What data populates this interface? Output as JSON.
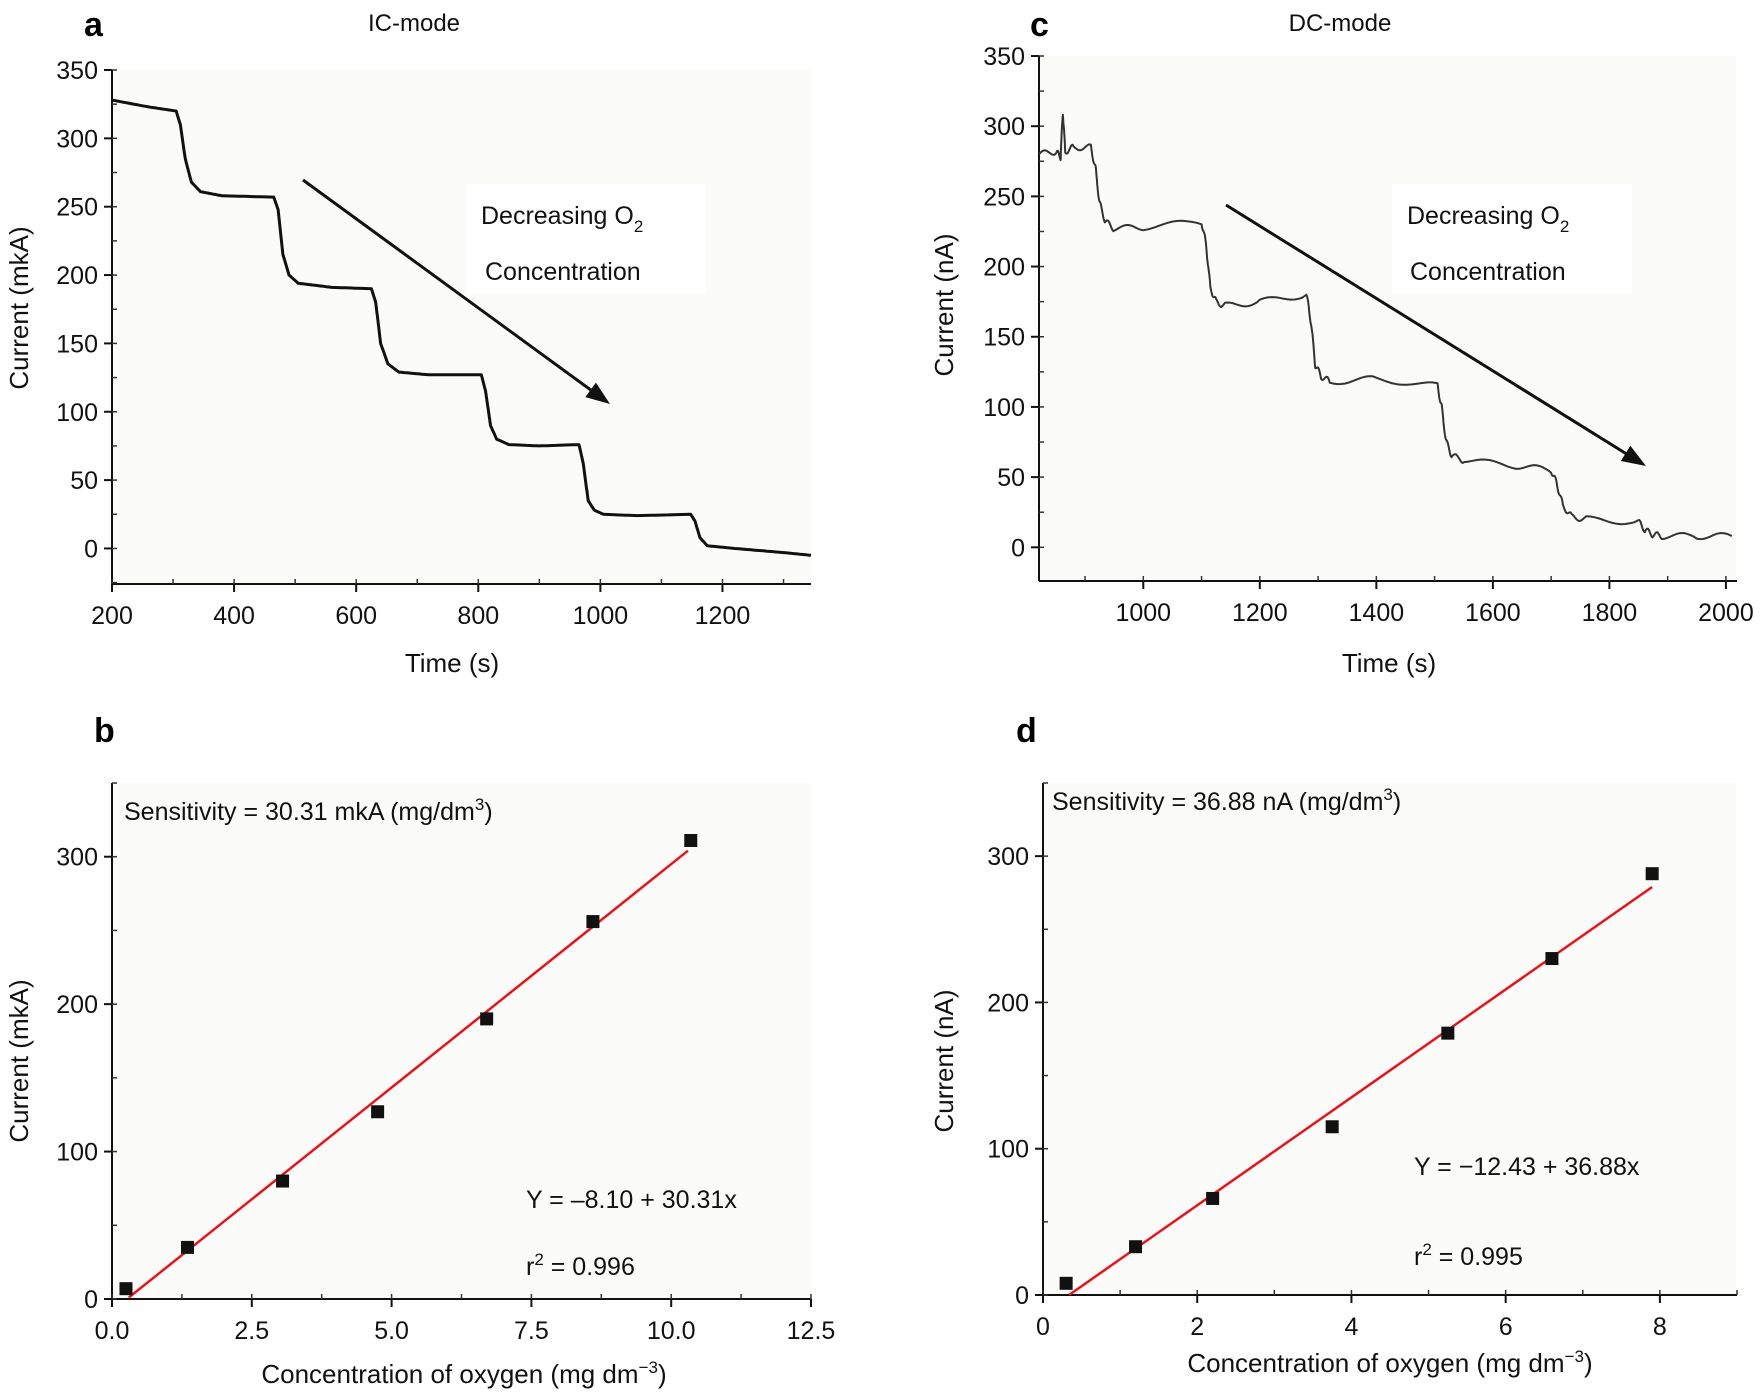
{
  "chart_data": [
    {
      "panel": "a",
      "title": "IC-mode",
      "type": "line",
      "xlabel": "Time (s)",
      "ylabel": "Current (mkA)",
      "xlim": [
        200,
        1345
      ],
      "ylim": [
        -26,
        350
      ],
      "xticks": [
        200,
        400,
        600,
        800,
        1000,
        1200
      ],
      "yticks": [
        0,
        50,
        100,
        150,
        200,
        250,
        300,
        350
      ],
      "annotation": [
        "Decreasing O",
        "2",
        "Concentration"
      ],
      "series": [
        {
          "color": "#111111",
          "x": [
            200,
            260,
            305,
            312,
            320,
            330,
            345,
            380,
            465,
            472,
            480,
            490,
            505,
            560,
            625,
            632,
            640,
            652,
            670,
            720,
            805,
            812,
            820,
            830,
            850,
            900,
            965,
            972,
            980,
            990,
            1005,
            1060,
            1148,
            1155,
            1163,
            1175,
            1220,
            1300,
            1345
          ],
          "y": [
            328,
            323,
            320,
            310,
            285,
            268,
            261,
            258,
            257,
            248,
            215,
            200,
            194,
            191,
            190,
            180,
            150,
            135,
            129,
            127,
            127,
            115,
            90,
            80,
            76,
            75,
            76,
            62,
            35,
            28,
            25,
            24,
            25,
            20,
            8,
            2,
            0,
            -3,
            -5
          ]
        }
      ]
    },
    {
      "panel": "c",
      "title": "DC-mode",
      "type": "line",
      "xlabel": "Time (s)",
      "ylabel": "Current (nA)",
      "xlim": [
        821,
        2019
      ],
      "ylim": [
        -24,
        350
      ],
      "xticks": [
        1000,
        1200,
        1400,
        1600,
        1800,
        2000
      ],
      "yticks": [
        0,
        50,
        100,
        150,
        200,
        250,
        300,
        350
      ],
      "annotation": [
        "Decreasing O",
        "2",
        "Concentration"
      ],
      "series": [
        {
          "color": "#333333",
          "noisy": true,
          "x": [
            821,
            850,
            858,
            862,
            866,
            880,
            910,
            918,
            925,
            935,
            950,
            1000,
            1100,
            1108,
            1115,
            1125,
            1140,
            1200,
            1280,
            1288,
            1295,
            1305,
            1320,
            1400,
            1505,
            1512,
            1520,
            1530,
            1550,
            1640,
            1700,
            1710,
            1720,
            1735,
            1760,
            1850,
            1862,
            1875,
            1890,
            1950,
            2010
          ],
          "y": [
            280,
            282,
            278,
            310,
            282,
            285,
            285,
            270,
            245,
            232,
            227,
            228,
            232,
            215,
            185,
            175,
            172,
            175,
            180,
            160,
            130,
            122,
            118,
            120,
            115,
            100,
            75,
            65,
            62,
            58,
            55,
            45,
            30,
            22,
            20,
            18,
            12,
            9,
            8,
            8,
            8
          ]
        }
      ]
    },
    {
      "panel": "b",
      "type": "scatter",
      "xlabel": "Concentration of oxygen (mg dm",
      "xlabel_sup": "−3",
      "xlabel_end": ")",
      "ylabel": "Current (mkA)",
      "xlim": [
        0,
        12.5
      ],
      "ylim": [
        0,
        350
      ],
      "xticks": [
        0,
        2.5,
        5,
        7.5,
        10,
        12.5
      ],
      "xtick_labels": [
        "0.0",
        "2.5",
        "5.0",
        "7.5",
        "10.0",
        "12.5"
      ],
      "yticks": [
        0,
        100,
        200,
        300
      ],
      "sensitivity": [
        "Sensitivity = 30.31 mkA (mg/dm",
        "3",
        ")"
      ],
      "equation": "Y = –8.10 + 30.31x",
      "r2": [
        "r",
        "2",
        " = 0.996"
      ],
      "fit": {
        "intercept": -8.1,
        "slope": 30.31,
        "x_range": [
          0.3,
          10.3
        ],
        "color": "#e8141c"
      },
      "points": {
        "x": [
          0.25,
          1.35,
          3.05,
          4.75,
          6.7,
          8.6,
          10.35
        ],
        "y": [
          7,
          35,
          80,
          127,
          190,
          256,
          311
        ],
        "color": "#111111"
      }
    },
    {
      "panel": "d",
      "type": "scatter",
      "xlabel": "Concentration of oxygen (mg dm",
      "xlabel_sup": "−3",
      "xlabel_end": ")",
      "ylabel": "Current (nA)",
      "xlim": [
        0,
        9
      ],
      "ylim": [
        0,
        350
      ],
      "xticks": [
        0,
        2,
        4,
        6,
        8
      ],
      "xtick_labels": [
        "0",
        "2",
        "4",
        "6",
        "8"
      ],
      "yticks": [
        0,
        100,
        200,
        300
      ],
      "sensitivity": [
        "Sensitivity = 36.88 nA (mg/dm",
        "3",
        ")"
      ],
      "equation": "Y = −12.43 + 36.88x",
      "r2": [
        "r",
        "2",
        " = 0.995"
      ],
      "fit": {
        "intercept": -12.43,
        "slope": 36.88,
        "x_range": [
          0.34,
          7.9
        ],
        "color": "#e8141c"
      },
      "points": {
        "x": [
          0.3,
          1.2,
          2.2,
          3.75,
          5.25,
          6.6,
          7.9
        ],
        "y": [
          8,
          33,
          66,
          115,
          179,
          230,
          288
        ],
        "color": "#111111"
      }
    }
  ]
}
